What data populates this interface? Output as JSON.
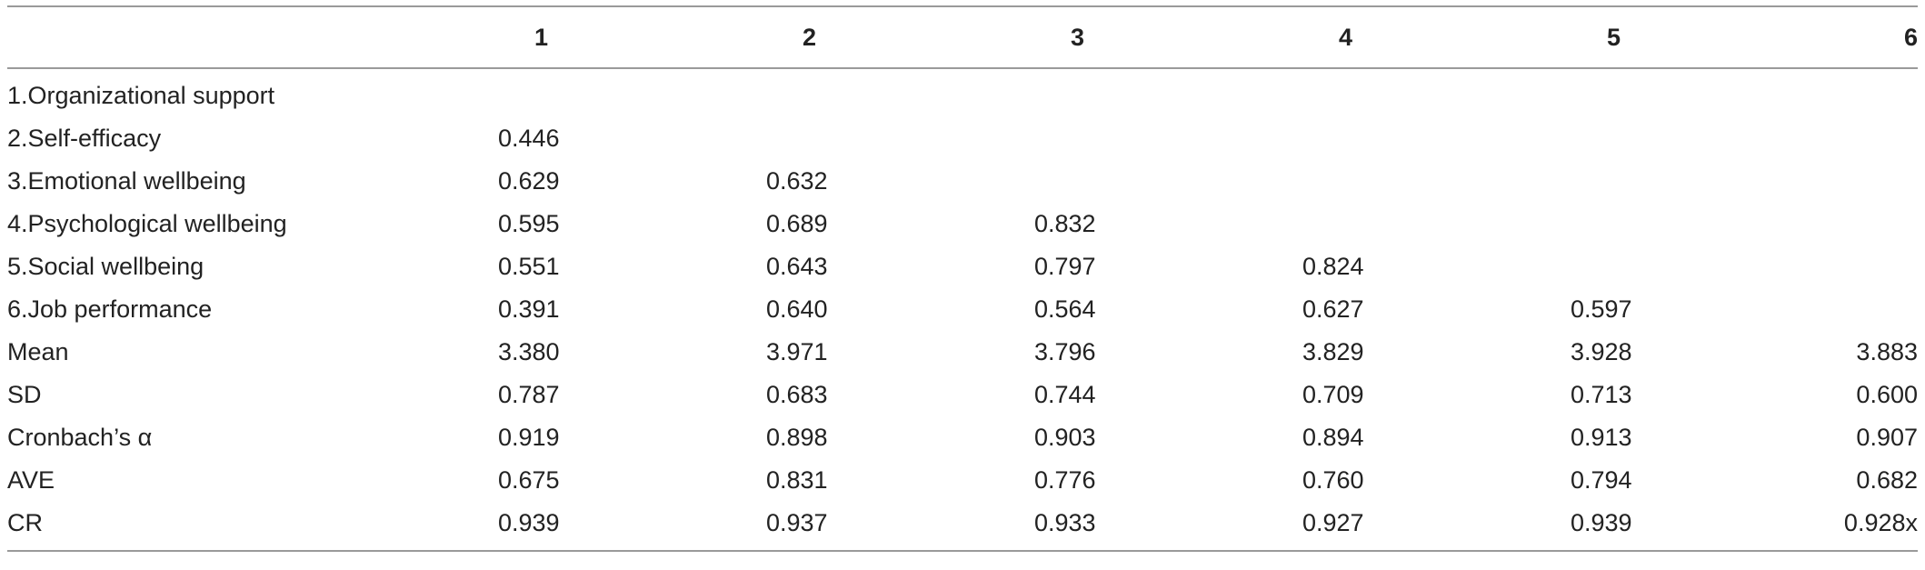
{
  "header": {
    "columns": [
      "",
      "1",
      "2",
      "3",
      "4",
      "5",
      "6"
    ]
  },
  "rows": [
    {
      "label": "1.Organizational support",
      "cells": [
        "",
        "",
        "",
        "",
        "",
        ""
      ]
    },
    {
      "label": "2.Self-efficacy",
      "cells": [
        "0.446",
        "",
        "",
        "",
        "",
        ""
      ]
    },
    {
      "label": "3.Emotional wellbeing",
      "cells": [
        "0.629",
        "0.632",
        "",
        "",
        "",
        ""
      ]
    },
    {
      "label": "4.Psychological wellbeing",
      "cells": [
        "0.595",
        "0.689",
        "0.832",
        "",
        "",
        ""
      ]
    },
    {
      "label": "5.Social wellbeing",
      "cells": [
        "0.551",
        "0.643",
        "0.797",
        "0.824",
        "",
        ""
      ]
    },
    {
      "label": "6.Job performance",
      "cells": [
        "0.391",
        "0.640",
        "0.564",
        "0.627",
        "0.597",
        ""
      ]
    },
    {
      "label": "Mean",
      "cells": [
        "3.380",
        "3.971",
        "3.796",
        "3.829",
        "3.928",
        "3.883"
      ]
    },
    {
      "label": "SD",
      "cells": [
        "0.787",
        "0.683",
        "0.744",
        "0.709",
        "0.713",
        "0.600"
      ]
    },
    {
      "label": "Cronbach’s α",
      "cells": [
        "0.919",
        "0.898",
        "0.903",
        "0.894",
        "0.913",
        "0.907"
      ]
    },
    {
      "label": "AVE",
      "cells": [
        "0.675",
        "0.831",
        "0.776",
        "0.760",
        "0.794",
        "0.682"
      ]
    },
    {
      "label": "CR",
      "cells": [
        "0.939",
        "0.937",
        "0.933",
        "0.927",
        "0.939",
        "0.928x"
      ]
    }
  ]
}
